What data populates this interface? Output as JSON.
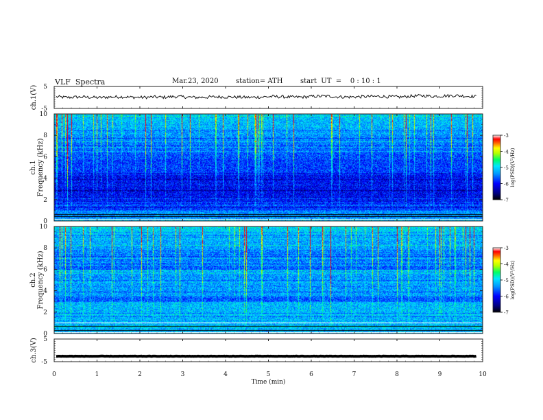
{
  "header": {
    "title": "VLF  Spectra",
    "date": "Mar.23, 2020",
    "station": "station= ATH",
    "start": "start  UT  =    0 : 10 : 1"
  },
  "chart_data": [
    {
      "type": "line",
      "panel": "ch1-waveform",
      "ylabel": "ch.1(V)",
      "ylim": [
        -5,
        5
      ],
      "yticks": [
        "5",
        "-5"
      ],
      "series": [
        {
          "values": [
            0.3,
            0.0,
            0.2,
            0.1,
            -0.1,
            0.2,
            0.3,
            0.1,
            0.0,
            0.2,
            0.1,
            0.4,
            0.2,
            0.0,
            0.1,
            0.3,
            0.2,
            0.1,
            0.0,
            0.2,
            0.4,
            0.3,
            0.1,
            0.2,
            0.5,
            0.6,
            0.3,
            0.2,
            0.3,
            0.4,
            0.5,
            0.3,
            0.2,
            0.6,
            0.8,
            0.5,
            0.7,
            0.9,
            0.6,
            0.4
          ]
        }
      ],
      "color": "#111111"
    },
    {
      "type": "heatmap",
      "panel": "ch1-spectrogram",
      "ylabel": "Frequency  (kHz)",
      "channel_label": "ch.1",
      "ylim": [
        0,
        10
      ],
      "yticks": [
        "0",
        "2",
        "4",
        "6",
        "8",
        "10"
      ],
      "colorbar_label": "log(PSD)(V²/Hz)",
      "colorbar_range": [
        -7,
        -3
      ],
      "colorbar_ticks": [
        "-3",
        "-4",
        "-5",
        "-6",
        "-7"
      ]
    },
    {
      "type": "heatmap",
      "panel": "ch2-spectrogram",
      "ylabel": "Frequency  (kHz)",
      "channel_label": "ch.2",
      "ylim": [
        0,
        10
      ],
      "yticks": [
        "0",
        "2",
        "4",
        "6",
        "8",
        "10"
      ],
      "colorbar_label": "log(PSD)(V²/Hz)",
      "colorbar_range": [
        -7,
        -3
      ],
      "colorbar_ticks": [
        "-3",
        "-4",
        "-5",
        "-6",
        "-7"
      ]
    },
    {
      "type": "line",
      "panel": "ch3-waveform",
      "ylabel": "ch.3(V)",
      "ylim": [
        -5,
        5
      ],
      "yticks": [
        "5",
        "-5"
      ],
      "series": [
        {
          "values": [
            -2.6,
            -2.6,
            -2.6,
            -2.6,
            -2.6,
            -2.6,
            -2.6,
            -2.6,
            -2.6,
            -2.6
          ]
        }
      ],
      "color": "#000000"
    }
  ],
  "xaxis": {
    "label": "Time  (min)",
    "xlim": [
      0,
      10
    ],
    "ticks": [
      "0",
      "1",
      "2",
      "3",
      "4",
      "5",
      "6",
      "7",
      "8",
      "9",
      "10"
    ]
  },
  "colors": {
    "colormap": [
      "#000080",
      "#0000ff",
      "#0096ff",
      "#00e6ff",
      "#00ff64",
      "#b4ff00",
      "#ffff00",
      "#ff6400",
      "#ff0000",
      "#ffffff"
    ]
  }
}
